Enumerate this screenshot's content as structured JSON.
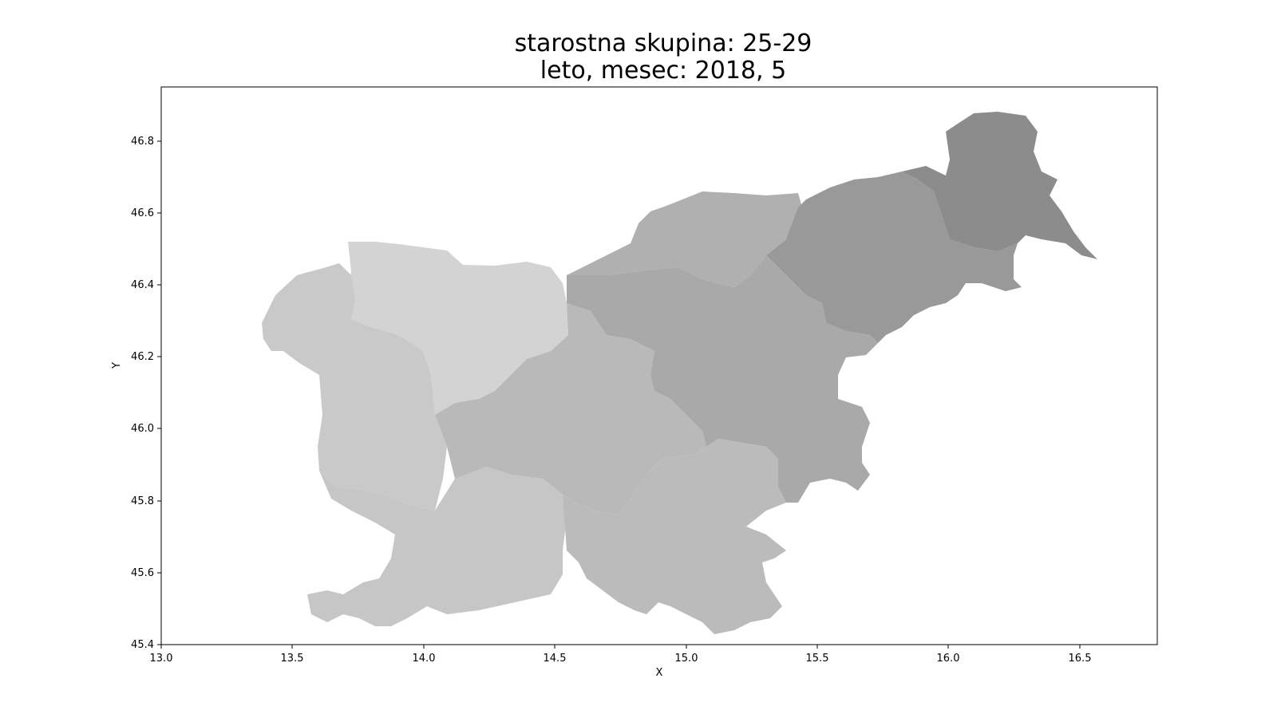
{
  "chart_data": {
    "type": "choropleth map",
    "title_line1": "starostna skupina: 25-29",
    "title_line2": "leto, mesec: 2018, 5",
    "xlabel": "X",
    "ylabel": "Y",
    "xlim": [
      13.0,
      16.8
    ],
    "ylim": [
      45.4,
      46.95
    ],
    "x_ticks": [
      "13.0",
      "13.5",
      "14.0",
      "14.5",
      "15.0",
      "15.5",
      "16.0",
      "16.5"
    ],
    "y_ticks": [
      "45.4",
      "45.6",
      "45.8",
      "46.0",
      "46.2",
      "46.4",
      "46.6",
      "46.8"
    ],
    "grid": false,
    "legend": "none",
    "region_colors": {
      "northeast": "#8c8c8c",
      "east": "#999999",
      "north_central": "#b0b0b0",
      "central_east": "#a9a9a9",
      "central": "#b9b9b9",
      "south": "#bbbbbb",
      "northwest": "#d3d3d3",
      "west": "#c9c9c9",
      "southwest": "#c6c6c6"
    }
  }
}
